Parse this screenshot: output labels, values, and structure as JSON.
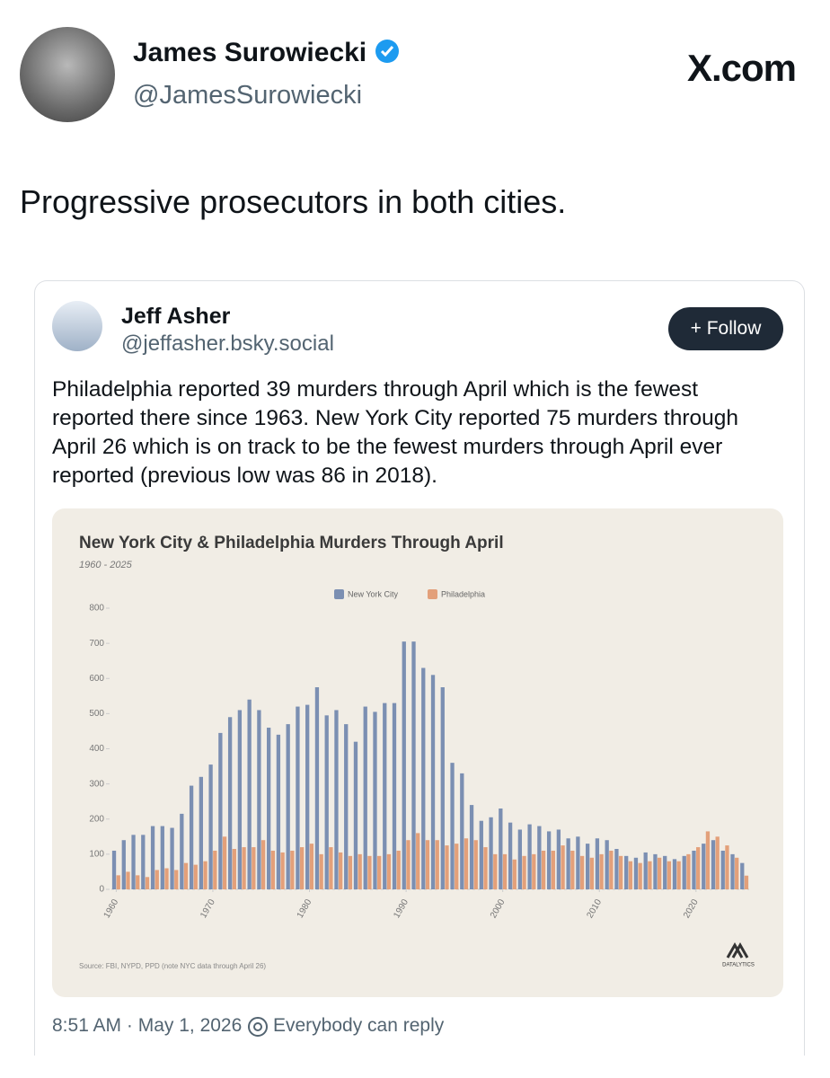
{
  "header": {
    "name": "James Surowiecki",
    "handle": "@JamesSurowiecki",
    "site": "X.com"
  },
  "post": {
    "text": "Progressive prosecutors in both cities."
  },
  "quoted_post": {
    "name": "Jeff Asher",
    "handle": "@jeffasher.bsky.social",
    "follow_button": "+ Follow",
    "text": "Philadelphia reported 39 murders through April which is the fewest reported there since 1963. New York City reported 75 murders through April 26 which is on track to be the fewest murders through April ever reported (previous low was 86 in 2018).",
    "timestamp": "8:51 AM · May 1, 2026",
    "reply_setting": "Everybody can reply"
  },
  "chart_data": {
    "type": "bar",
    "title": "New York City & Philadelphia Murders Through April",
    "subtitle": "1960 - 2025",
    "source": "Source: FBI, NYPD, PPD (note NYC data through April 26)",
    "logo": "DATALYTICS",
    "x": [
      1960,
      1961,
      1962,
      1963,
      1964,
      1965,
      1966,
      1967,
      1968,
      1969,
      1970,
      1971,
      1972,
      1973,
      1974,
      1975,
      1976,
      1977,
      1978,
      1979,
      1980,
      1981,
      1982,
      1983,
      1984,
      1985,
      1986,
      1987,
      1988,
      1989,
      1990,
      1991,
      1992,
      1993,
      1994,
      1995,
      1996,
      1997,
      1998,
      1999,
      2000,
      2001,
      2002,
      2003,
      2004,
      2005,
      2006,
      2007,
      2008,
      2009,
      2010,
      2011,
      2012,
      2013,
      2014,
      2015,
      2016,
      2017,
      2018,
      2019,
      2020,
      2021,
      2022,
      2023,
      2024,
      2025
    ],
    "xlim": [
      1959.5,
      2025.5
    ],
    "xticks": [
      1960,
      1970,
      1980,
      1990,
      2000,
      2010,
      2020
    ],
    "ylim": [
      0,
      800
    ],
    "yticks": [
      0,
      100,
      200,
      300,
      400,
      500,
      600,
      700,
      800
    ],
    "series": [
      {
        "name": "New York City",
        "color": "#7b8fb2",
        "values": [
          110,
          140,
          155,
          155,
          180,
          180,
          175,
          215,
          295,
          320,
          355,
          445,
          490,
          510,
          540,
          510,
          460,
          440,
          470,
          520,
          525,
          575,
          495,
          510,
          470,
          420,
          520,
          505,
          530,
          530,
          705,
          705,
          630,
          610,
          575,
          360,
          330,
          240,
          195,
          205,
          230,
          190,
          170,
          185,
          180,
          165,
          170,
          145,
          150,
          130,
          145,
          140,
          115,
          95,
          90,
          105,
          100,
          95,
          86,
          95,
          110,
          130,
          140,
          110,
          100,
          75
        ]
      },
      {
        "name": "Philadelphia",
        "color": "#e3a07a",
        "values": [
          40,
          50,
          40,
          35,
          55,
          60,
          55,
          75,
          70,
          80,
          110,
          150,
          115,
          120,
          120,
          140,
          110,
          105,
          110,
          120,
          130,
          100,
          120,
          105,
          95,
          100,
          95,
          95,
          100,
          110,
          140,
          160,
          140,
          140,
          125,
          130,
          145,
          140,
          120,
          100,
          100,
          85,
          95,
          100,
          110,
          110,
          125,
          110,
          95,
          90,
          100,
          110,
          95,
          80,
          75,
          80,
          90,
          80,
          80,
          100,
          120,
          165,
          150,
          125,
          90,
          39
        ]
      }
    ],
    "legend": "top"
  }
}
